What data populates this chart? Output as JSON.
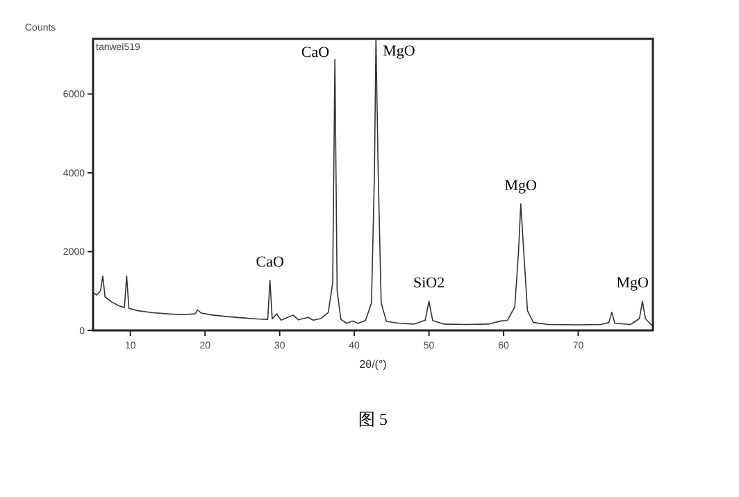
{
  "chart_data": {
    "type": "line",
    "title": "图 5",
    "xlabel": "2θ/(°)",
    "ylabel": "Counts",
    "x": [
      5,
      5.5,
      6.0,
      6.3,
      6.6,
      7.5,
      8.5,
      9.2,
      9.5,
      9.8,
      11,
      13,
      15,
      17,
      18.7,
      19,
      19.5,
      21,
      23,
      25,
      27,
      28.4,
      28.7,
      29,
      29.6,
      30.2,
      31.8,
      32.5,
      33.8,
      34.5,
      35.5,
      36.5,
      37.1,
      37.4,
      37.7,
      38.2,
      39,
      39.8,
      40.5,
      41.5,
      42.3,
      42.7,
      42.9,
      43.2,
      43.6,
      44.3,
      46,
      48,
      49.5,
      50,
      50.5,
      52,
      55,
      58,
      59.6,
      60.5,
      61.5,
      62,
      62.3,
      62.7,
      63.2,
      64,
      66,
      70,
      73,
      74.1,
      74.5,
      74.9,
      77,
      78.2,
      78.6,
      79,
      80
    ],
    "series": [
      {
        "color": "#333333",
        "values": [
          950,
          900,
          1000,
          1380,
          850,
          720,
          620,
          580,
          1380,
          560,
          500,
          450,
          420,
          400,
          420,
          520,
          440,
          390,
          350,
          320,
          290,
          280,
          1270,
          290,
          420,
          260,
          390,
          270,
          330,
          260,
          300,
          450,
          1200,
          6880,
          1000,
          280,
          180,
          240,
          180,
          250,
          700,
          4000,
          7400,
          4000,
          700,
          230,
          180,
          160,
          260,
          740,
          250,
          160,
          150,
          160,
          240,
          250,
          600,
          2000,
          3210,
          2000,
          500,
          200,
          150,
          140,
          150,
          200,
          460,
          180,
          150,
          300,
          740,
          300,
          100
        ]
      }
    ],
    "xlim": [
      5,
      80
    ],
    "ylim": [
      0,
      7400
    ],
    "xticks": [
      10,
      20,
      30,
      40,
      50,
      60,
      70
    ],
    "yticks": [
      0,
      2000,
      4000,
      6000
    ],
    "grid": false,
    "marker": "none",
    "line_style": "solid",
    "annotations": [
      "tanwei519",
      {
        "text": "CaO",
        "x": 28.7,
        "y": 1270
      },
      {
        "text": "CaO",
        "x": 37.4,
        "y": 6880
      },
      {
        "text": "MgO",
        "x": 42.9,
        "y": 7400
      },
      {
        "text": "SiO2",
        "x": 50,
        "y": 740
      },
      {
        "text": "MgO",
        "x": 62.3,
        "y": 3210
      },
      {
        "text": "MgO",
        "x": 78.6,
        "y": 740
      }
    ]
  }
}
